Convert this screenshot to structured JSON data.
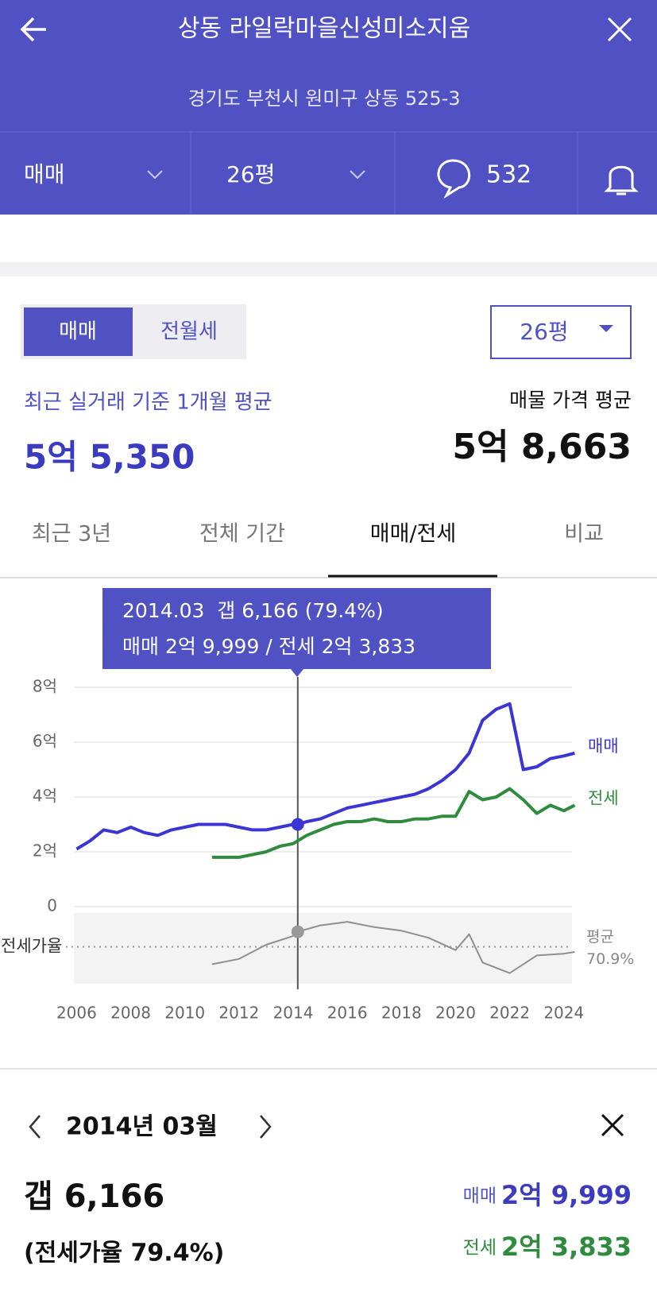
{
  "header": {
    "title": "상동 라일락마을신성미소지움",
    "address": "경기도 부천시 원미구 상동 525-3"
  },
  "filter_bar": {
    "trade_type": "매매",
    "size": "26평",
    "comments": 532
  },
  "toggle": [
    "매매",
    "전월세"
  ],
  "size_select": "26평",
  "summary": {
    "recent_label": "최근 실거래 기준 1개월 평균",
    "recent_value": "5억 5,350",
    "listing_label": "매물 가격 평균",
    "listing_value": "5억 8,663"
  },
  "tabs": [
    "최근 3년",
    "전체 기간",
    "매매/전세",
    "비교"
  ],
  "tooltip": {
    "line1": "2014.03  갭 6,166 (79.4%)",
    "line2": "매매 2억 9,999 / 전세 2억 3,833"
  },
  "chart_data": [
    {
      "type": "line",
      "x": [
        2006,
        2006.5,
        2007,
        2007.5,
        2008,
        2008.5,
        2009,
        2009.5,
        2010,
        2010.5,
        2011,
        2011.5,
        2012,
        2012.5,
        2013,
        2013.5,
        2014,
        2014.17,
        2014.5,
        2015,
        2015.5,
        2016,
        2016.5,
        2017,
        2017.5,
        2018,
        2018.5,
        2019,
        2019.5,
        2020,
        2020.5,
        2021,
        2021.5,
        2022,
        2022.5,
        2023,
        2023.5,
        2024,
        2024.4
      ],
      "series": [
        {
          "name": "매매",
          "color": "#3b35d4",
          "values": [
            2.1,
            2.4,
            2.8,
            2.7,
            2.9,
            2.7,
            2.6,
            2.8,
            2.9,
            3.0,
            3.0,
            3.0,
            2.9,
            2.8,
            2.8,
            2.9,
            3.0,
            3.0,
            3.1,
            3.2,
            3.4,
            3.6,
            3.7,
            3.8,
            3.9,
            4.0,
            4.1,
            4.3,
            4.6,
            5.0,
            5.6,
            6.8,
            7.2,
            7.4,
            5.0,
            5.1,
            5.4,
            5.5,
            5.6
          ]
        },
        {
          "name": "전세",
          "color": "#2f8c3f",
          "values": [
            null,
            null,
            null,
            null,
            null,
            null,
            null,
            null,
            null,
            null,
            1.8,
            1.8,
            1.8,
            1.9,
            2.0,
            2.2,
            2.3,
            2.4,
            2.6,
            2.8,
            3.0,
            3.1,
            3.1,
            3.2,
            3.1,
            3.1,
            3.2,
            3.2,
            3.3,
            3.3,
            4.2,
            3.9,
            4.0,
            4.3,
            3.9,
            3.4,
            3.7,
            3.5,
            3.7
          ]
        }
      ],
      "xlim": [
        2005.9,
        2024.3
      ],
      "xticks": [
        2006,
        2008,
        2010,
        2012,
        2014,
        2016,
        2018,
        2020,
        2022,
        2024
      ],
      "ylim": [
        0,
        8
      ],
      "yticks": [
        0,
        {
          "value": 2,
          "label": "2억"
        },
        {
          "value": 4,
          "label": "4억"
        },
        {
          "value": 6,
          "label": "6억"
        },
        {
          "value": 8,
          "label": "8억"
        }
      ],
      "grid": true,
      "cursor_x": 2014.17
    },
    {
      "type": "line",
      "ylabel": "전세가율",
      "x": [
        2011,
        2012,
        2013,
        2014,
        2014.17,
        2015,
        2016,
        2017,
        2018,
        2019,
        2020,
        2020.5,
        2021,
        2022,
        2023,
        2024,
        2024.4
      ],
      "series": [
        {
          "color": "#8f8f8f",
          "values": [
            61,
            64,
            72,
            77,
            79.4,
            83,
            85,
            82,
            80,
            76,
            69,
            78,
            62,
            56,
            66,
            67,
            68
          ]
        }
      ],
      "xlim": [
        2005.9,
        2024.3
      ],
      "ylim": [
        50,
        90
      ],
      "average": {
        "title": "평균",
        "value": 70.9,
        "label": "70.9%"
      }
    }
  ],
  "detail": {
    "date": "2014년 03월",
    "gap": "갭 6,166",
    "ratio": "(전세가율 79.4%)",
    "sale_label": "매매",
    "sale_value": "2억 9,999",
    "jeonse_label": "전세",
    "jeonse_value": "2억 3,833"
  }
}
